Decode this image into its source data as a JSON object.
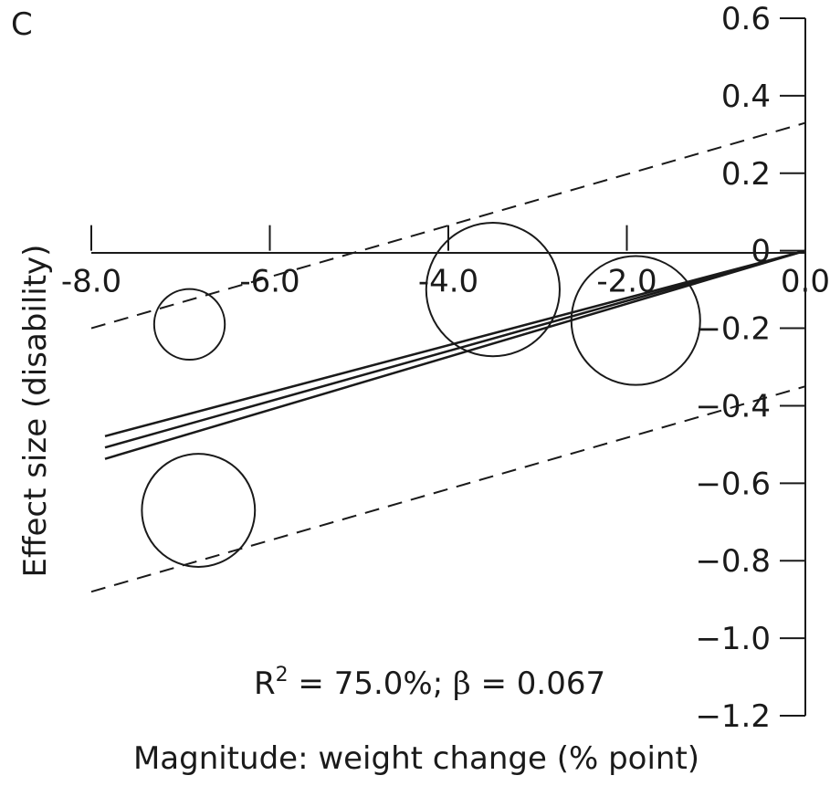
{
  "chart_data": {
    "type": "scatter",
    "panel_label": "C",
    "xlabel": "Magnitude: weight change (% point)",
    "ylabel": "Effect size (disability)",
    "xlim": [
      -8.0,
      0.0
    ],
    "ylim": [
      -1.2,
      0.6
    ],
    "x_ticks": [
      -8.0,
      -6.0,
      -4.0,
      -2.0,
      0.0
    ],
    "x_tick_labels": [
      "-8.0",
      "-6.0",
      "-4.0",
      "-2.0",
      "0.0"
    ],
    "y_ticks": [
      0.6,
      0.4,
      0.2,
      0,
      -0.2,
      -0.4,
      -0.6,
      -0.8,
      -1.0,
      -1.2
    ],
    "y_tick_labels": [
      "0.6",
      "0.4",
      "0.2",
      "0",
      "−0.2",
      "−0.4",
      "−0.6",
      "−0.8",
      "−1.0",
      "−1.2"
    ],
    "points": [
      {
        "x": -6.9,
        "y": -0.19,
        "weight": 0.45
      },
      {
        "x": -6.8,
        "y": -0.67,
        "weight": 0.72
      },
      {
        "x": -3.5,
        "y": -0.1,
        "weight": 0.85
      },
      {
        "x": -1.9,
        "y": -0.18,
        "weight": 0.82
      }
    ],
    "regression": {
      "slope": 0.067,
      "intercept": 0.0
    },
    "confidence_lines": [
      {
        "x0": -8.0,
        "y0": -0.55,
        "x1": 0.0,
        "y1": 0.0
      },
      {
        "x0": -8.0,
        "y0": -0.49,
        "x1": 0.0,
        "y1": 0.0
      },
      {
        "x0": -8.0,
        "y0": -0.52,
        "x1": 0.0,
        "y1": 0.0
      }
    ],
    "prediction_bounds": [
      {
        "x0": -8.0,
        "y0": -0.2,
        "x1": 0.0,
        "y1": 0.33
      },
      {
        "x0": -8.0,
        "y0": -0.88,
        "x1": 0.0,
        "y1": -0.35
      }
    ],
    "annotation": {
      "r_label": "R",
      "r_sup": "2",
      "r_value": " = 75.0%; ",
      "beta_symbol": "β",
      "beta_value": " = 0.067"
    },
    "grid": false,
    "legend": "none"
  }
}
